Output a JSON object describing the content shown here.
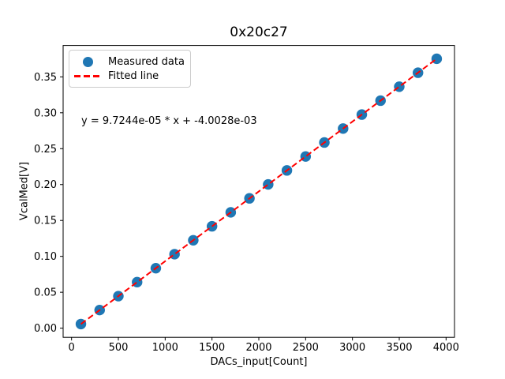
{
  "figure": {
    "background": "#ffffff"
  },
  "chart_data": {
    "type": "scatter",
    "title": "0x20c27",
    "xlabel": "DACs_input[Count]",
    "ylabel": "VcalMed[V]",
    "xlim": [
      -90,
      4090
    ],
    "ylim": [
      -0.01275,
      0.39372
    ],
    "grid": false,
    "xticks": [
      0,
      500,
      1000,
      1500,
      2000,
      2500,
      3000,
      3500,
      4000
    ],
    "xticklabels": [
      "0",
      "500",
      "1000",
      "1500",
      "2000",
      "2500",
      "3000",
      "3500",
      "4000"
    ],
    "yticks": [
      0.0,
      0.05,
      0.1,
      0.15,
      0.2,
      0.25,
      0.3,
      0.35
    ],
    "yticklabels": [
      "0.00",
      "0.05",
      "0.10",
      "0.15",
      "0.20",
      "0.25",
      "0.30",
      "0.35"
    ],
    "series": [
      {
        "name": "Measured data",
        "type": "scatter",
        "color": "#1f77b4",
        "x": [
          100,
          300,
          500,
          700,
          900,
          1100,
          1300,
          1500,
          1700,
          1900,
          2100,
          2300,
          2500,
          2700,
          2900,
          3100,
          3300,
          3500,
          3700,
          3900
        ],
        "y": [
          0.0057,
          0.0252,
          0.0446,
          0.0641,
          0.0835,
          0.103,
          0.1224,
          0.1419,
          0.1613,
          0.1808,
          0.2002,
          0.2197,
          0.2391,
          0.2586,
          0.278,
          0.2975,
          0.3169,
          0.3363,
          0.3558,
          0.3752
        ]
      },
      {
        "name": "Fitted line",
        "type": "line",
        "style": "dashed",
        "color": "#ff0000",
        "slope": 9.7244e-05,
        "intercept": -0.0040028,
        "x": [
          100,
          3900
        ],
        "y": [
          0.0057,
          0.3752
        ]
      }
    ],
    "annotation": "y = 9.7244e-05 * x + -4.0028e-03",
    "legend": {
      "position": "upper left",
      "entries": [
        "Measured data",
        "Fitted line"
      ]
    }
  }
}
